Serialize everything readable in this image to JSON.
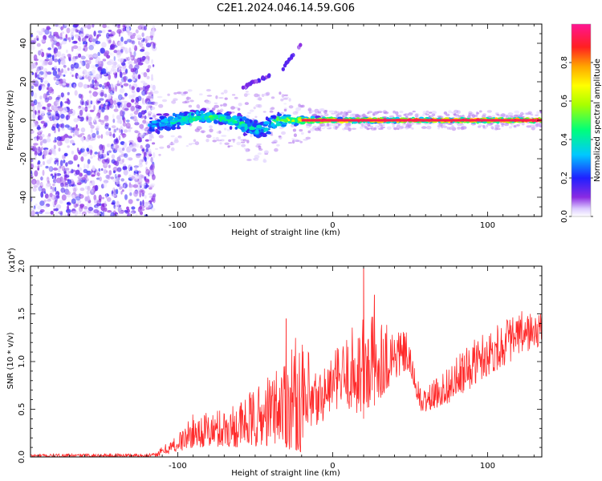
{
  "figure_title": "C2E1.2024.046.14.59.G06",
  "chart_data": [
    {
      "type": "heatmap",
      "xlabel": "Height of straight line (km)",
      "ylabel": "Frequency (Hz)",
      "xlim": [
        -195,
        135
      ],
      "ylim": [
        -50,
        50
      ],
      "x_ticks": [
        {
          "value": -100,
          "label": "-100"
        },
        {
          "value": 0,
          "label": "0"
        },
        {
          "value": 100,
          "label": "100"
        }
      ],
      "y_ticks": [
        {
          "value": -40,
          "label": "-40"
        },
        {
          "value": -20,
          "label": "-20"
        },
        {
          "value": 0,
          "label": "0"
        },
        {
          "value": 20,
          "label": "20"
        },
        {
          "value": 40,
          "label": "40"
        }
      ],
      "colorbar": {
        "label": "Normalized spectral amplitude",
        "range": [
          0,
          1
        ],
        "ticks": [
          {
            "value": 0.0,
            "label": "0.0"
          },
          {
            "value": 0.2,
            "label": "0.2"
          },
          {
            "value": 0.4,
            "label": "0.4"
          },
          {
            "value": 0.6,
            "label": "0.6"
          },
          {
            "value": 0.8,
            "label": "0.8"
          }
        ]
      },
      "noise_region_x": [
        -195,
        -115
      ],
      "signal_band": [
        {
          "x": -115,
          "center": -2,
          "width": 5,
          "amp": 0.35
        },
        {
          "x": -100,
          "center": 0,
          "width": 4,
          "amp": 0.5
        },
        {
          "x": -85,
          "center": 2,
          "width": 3,
          "amp": 0.55
        },
        {
          "x": -70,
          "center": 1,
          "width": 3,
          "amp": 0.5
        },
        {
          "x": -55,
          "center": -3,
          "width": 5,
          "amp": 0.45
        },
        {
          "x": -45,
          "center": -5,
          "width": 5,
          "amp": 0.4
        },
        {
          "x": -35,
          "center": 0,
          "width": 4,
          "amp": 0.55
        },
        {
          "x": -25,
          "center": 0,
          "width": 2,
          "amp": 0.7
        },
        {
          "x": -15,
          "center": 0,
          "width": 1.5,
          "amp": 0.85
        },
        {
          "x": 0,
          "center": 0,
          "width": 1,
          "amp": 0.95
        },
        {
          "x": 30,
          "center": 0,
          "width": 0.8,
          "amp": 1.0
        },
        {
          "x": 135,
          "center": 0,
          "width": 0.8,
          "amp": 1.0
        }
      ],
      "spur_line": [
        {
          "x": -58,
          "y": 17
        },
        {
          "x": -45,
          "y": 22
        },
        {
          "x": -32,
          "y": 27
        },
        {
          "x": -20,
          "y": 40
        }
      ]
    },
    {
      "type": "line",
      "xlabel": "Height of straight line (km)",
      "ylabel": "SNR (10 * v/v)",
      "y_multiplier": "(x10",
      "y_multiplier_exp": "4",
      "y_multiplier_close": ")",
      "xlim": [
        -195,
        135
      ],
      "ylim": [
        0,
        2.0
      ],
      "x_ticks": [
        {
          "value": -100,
          "label": "-100"
        },
        {
          "value": 0,
          "label": "0"
        },
        {
          "value": 100,
          "label": "100"
        }
      ],
      "y_ticks": [
        {
          "value": 0.0,
          "label": "0.0"
        },
        {
          "value": 0.5,
          "label": "0.5"
        },
        {
          "value": 1.0,
          "label": "1.0"
        },
        {
          "value": 1.5,
          "label": "1.5"
        },
        {
          "value": 2.0,
          "label": "2.0"
        }
      ],
      "color": "#ff2a2a",
      "envelope": [
        {
          "x": -195,
          "lo": 0.0,
          "hi": 0.03
        },
        {
          "x": -115,
          "lo": 0.0,
          "hi": 0.04
        },
        {
          "x": -100,
          "lo": 0.05,
          "hi": 0.25
        },
        {
          "x": -90,
          "lo": 0.1,
          "hi": 0.45
        },
        {
          "x": -75,
          "lo": 0.1,
          "hi": 0.5
        },
        {
          "x": -60,
          "lo": 0.1,
          "hi": 0.6
        },
        {
          "x": -45,
          "lo": 0.1,
          "hi": 0.8
        },
        {
          "x": -35,
          "lo": 0.15,
          "hi": 1.0
        },
        {
          "x": -25,
          "lo": 0.05,
          "hi": 1.3
        },
        {
          "x": -15,
          "lo": 0.05,
          "hi": 1.1
        },
        {
          "x": -10,
          "lo": 0.3,
          "hi": 0.9
        },
        {
          "x": 0,
          "lo": 0.5,
          "hi": 1.1
        },
        {
          "x": 10,
          "lo": 0.5,
          "hi": 1.3
        },
        {
          "x": 20,
          "lo": 0.4,
          "hi": 1.6
        },
        {
          "x": 30,
          "lo": 0.6,
          "hi": 1.5
        },
        {
          "x": 40,
          "lo": 0.8,
          "hi": 1.4
        },
        {
          "x": 48,
          "lo": 0.9,
          "hi": 1.3
        },
        {
          "x": 52,
          "lo": 0.75,
          "hi": 1.0
        },
        {
          "x": 57,
          "lo": 0.45,
          "hi": 0.7
        },
        {
          "x": 65,
          "lo": 0.5,
          "hi": 0.8
        },
        {
          "x": 80,
          "lo": 0.6,
          "hi": 1.05
        },
        {
          "x": 95,
          "lo": 0.8,
          "hi": 1.3
        },
        {
          "x": 110,
          "lo": 0.95,
          "hi": 1.45
        },
        {
          "x": 125,
          "lo": 1.1,
          "hi": 1.55
        },
        {
          "x": 135,
          "lo": 1.15,
          "hi": 1.5
        }
      ],
      "peaks": [
        {
          "x": -30,
          "y": 1.45
        },
        {
          "x": 20,
          "y": 1.98
        },
        {
          "x": 27,
          "y": 1.7
        }
      ]
    }
  ]
}
